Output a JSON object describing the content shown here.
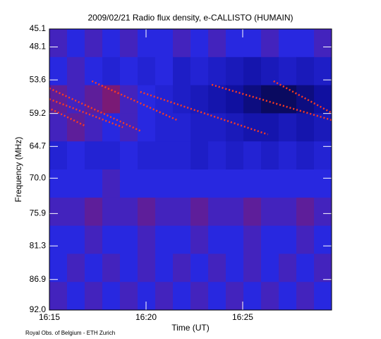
{
  "chart_data": {
    "type": "spectrogram",
    "title": "2009/02/21  Radio flux density, e-CALLISTO (HUMAIN)",
    "x_label": "Time (UT)",
    "y_label": "Frequency (MHz)",
    "credit": "Royal Obs. of Belgium - ETH Zurich",
    "xlim": [
      975,
      989.6
    ],
    "xticks": [
      {
        "value": 975,
        "label": "16:15"
      },
      {
        "value": 980,
        "label": "16:20"
      },
      {
        "value": 985,
        "label": "16:25"
      }
    ],
    "ylim": [
      92.0,
      45.1
    ],
    "yticks": [
      45.1,
      48.1,
      53.6,
      59.2,
      64.7,
      {
        "value": 70.0,
        "label": "70.0"
      },
      75.9,
      81.3,
      86.9,
      {
        "value": 92.0,
        "label": "92.0"
      }
    ],
    "colormap": [
      "#000000",
      "#1010a0",
      "#2828e0",
      "#b01030",
      "#ffff60"
    ],
    "z": [
      [
        0.55,
        0.5,
        0.55,
        0.5,
        0.55,
        0.5,
        0.5,
        0.55,
        0.5,
        0.55,
        0.5,
        0.5,
        0.55,
        0.5,
        0.5,
        0.55
      ],
      [
        0.5,
        0.55,
        0.5,
        0.45,
        0.5,
        0.45,
        0.5,
        0.4,
        0.45,
        0.4,
        0.35,
        0.3,
        0.35,
        0.4,
        0.35,
        0.4
      ],
      [
        0.6,
        0.55,
        0.6,
        0.65,
        0.55,
        0.5,
        0.45,
        0.4,
        0.35,
        0.3,
        0.25,
        0.2,
        0.15,
        0.15,
        0.2,
        0.25
      ],
      [
        0.55,
        0.6,
        0.55,
        0.5,
        0.55,
        0.5,
        0.45,
        0.45,
        0.4,
        0.4,
        0.35,
        0.3,
        0.3,
        0.35,
        0.3,
        0.35
      ],
      [
        0.45,
        0.5,
        0.45,
        0.45,
        0.5,
        0.45,
        0.45,
        0.45,
        0.4,
        0.45,
        0.4,
        0.45,
        0.4,
        0.45,
        0.4,
        0.45
      ],
      [
        0.5,
        0.5,
        0.5,
        0.55,
        0.5,
        0.5,
        0.5,
        0.5,
        0.5,
        0.5,
        0.5,
        0.5,
        0.5,
        0.5,
        0.5,
        0.5
      ],
      [
        0.55,
        0.55,
        0.6,
        0.55,
        0.55,
        0.6,
        0.55,
        0.55,
        0.6,
        0.55,
        0.55,
        0.6,
        0.55,
        0.55,
        0.6,
        0.55
      ],
      [
        0.5,
        0.5,
        0.55,
        0.5,
        0.5,
        0.55,
        0.5,
        0.5,
        0.55,
        0.5,
        0.5,
        0.55,
        0.5,
        0.5,
        0.55,
        0.5
      ],
      [
        0.5,
        0.55,
        0.5,
        0.55,
        0.5,
        0.55,
        0.5,
        0.55,
        0.5,
        0.55,
        0.5,
        0.55,
        0.5,
        0.55,
        0.5,
        0.55
      ],
      [
        0.55,
        0.5,
        0.55,
        0.5,
        0.55,
        0.5,
        0.55,
        0.5,
        0.55,
        0.5,
        0.55,
        0.5,
        0.55,
        0.5,
        0.55,
        0.5
      ]
    ],
    "burst_color": "#ff3a20",
    "bursts": [
      {
        "x": [
          975,
          979.7
        ],
        "y": [
          55.0,
          62.1
        ]
      },
      {
        "x": [
          975,
          978.8
        ],
        "y": [
          56.8,
          61.5
        ]
      },
      {
        "x": [
          975.1,
          976.8
        ],
        "y": [
          58.5,
          61.2
        ]
      },
      {
        "x": [
          977.2,
          981.6
        ],
        "y": [
          53.8,
          60.3
        ]
      },
      {
        "x": [
          979.7,
          986.3
        ],
        "y": [
          55.6,
          62.7
        ]
      },
      {
        "x": [
          983.4,
          989.6
        ],
        "y": [
          54.4,
          60.3
        ]
      },
      {
        "x": [
          986.6,
          989.6
        ],
        "y": [
          53.8,
          59.1
        ]
      }
    ]
  }
}
